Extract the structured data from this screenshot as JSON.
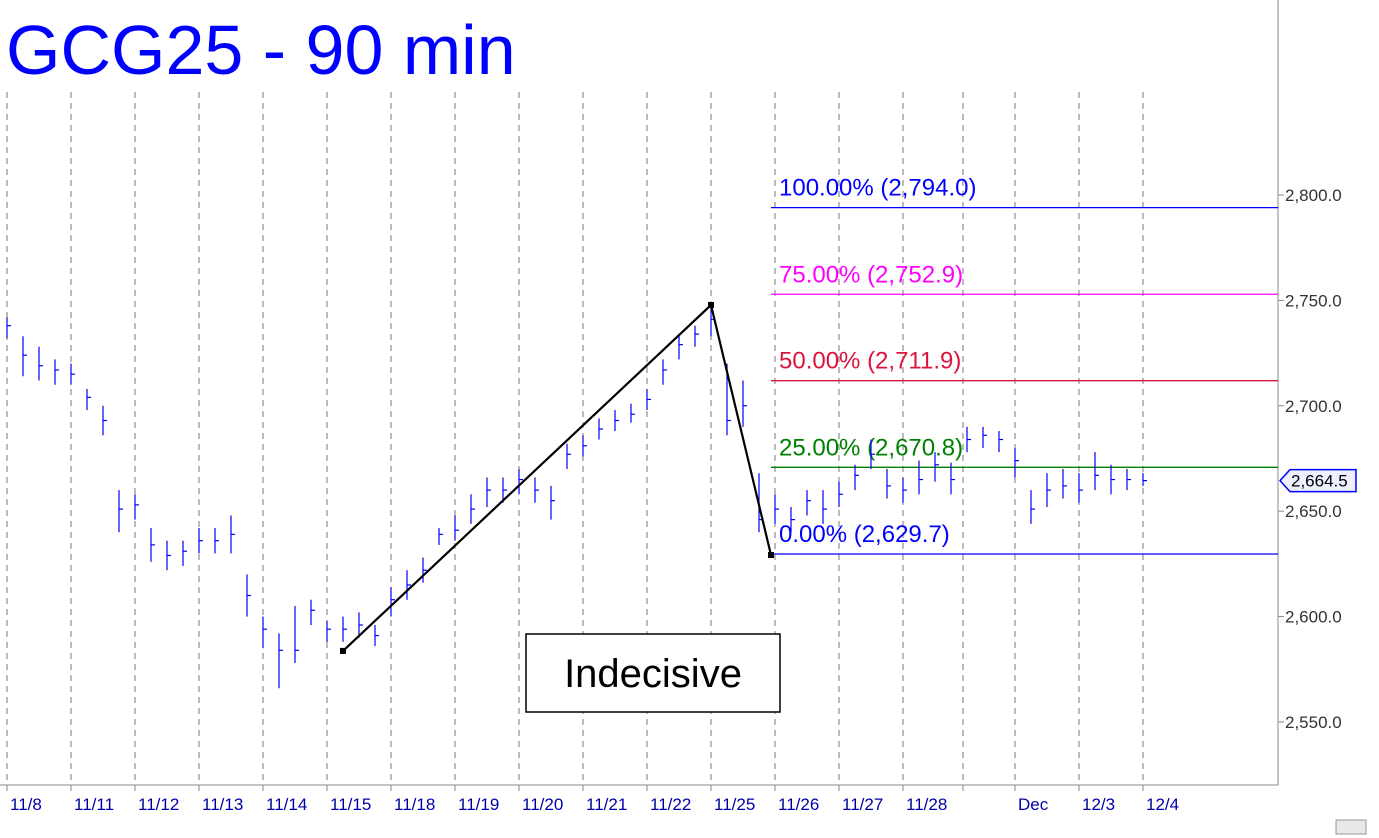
{
  "chart_data": {
    "type": "ohlc",
    "title": "GCG25 - 90 min",
    "color": "#0000ff",
    "x": [
      0,
      4,
      8,
      12,
      16,
      20,
      24,
      28,
      32,
      36,
      40,
      44,
      48,
      52,
      56,
      60,
      64,
      68,
      72,
      76,
      80,
      84,
      88,
      92,
      96,
      100,
      104,
      108,
      112,
      116,
      120,
      124,
      128,
      132,
      136,
      140,
      144,
      148,
      152,
      156,
      160,
      164,
      168,
      172,
      176,
      180,
      184,
      188,
      192,
      196,
      200,
      204,
      208,
      212,
      216,
      220,
      224,
      228,
      232,
      236,
      240,
      244,
      248,
      252,
      256,
      260,
      264,
      268,
      272,
      276,
      280,
      284
    ],
    "high": [
      2742,
      2733,
      2728,
      2722,
      2720,
      2708,
      2700,
      2660,
      2658,
      2642,
      2636,
      2636,
      2642,
      2642,
      2648,
      2620,
      2600,
      2592,
      2605,
      2608,
      2598,
      2600,
      2602,
      2596,
      2614,
      2622,
      2628,
      2642,
      2648,
      2658,
      2666,
      2666,
      2670,
      2666,
      2662,
      2682,
      2686,
      2694,
      2698,
      2701,
      2708,
      2722,
      2734,
      2738,
      2748,
      2720,
      2712,
      2668,
      2658,
      2652,
      2660,
      2660,
      2664,
      2672,
      2684,
      2670,
      2666,
      2674,
      2678,
      2673,
      2690,
      2690,
      2688,
      2680,
      2660,
      2668,
      2670,
      2668,
      2678,
      2672,
      2670,
      2668
    ],
    "low": [
      2732,
      2714,
      2712,
      2710,
      2710,
      2698,
      2686,
      2640,
      2646,
      2626,
      2622,
      2624,
      2630,
      2630,
      2630,
      2600,
      2585,
      2566,
      2578,
      2596,
      2588,
      2588,
      2590,
      2586,
      2600,
      2608,
      2616,
      2634,
      2636,
      2644,
      2652,
      2654,
      2658,
      2654,
      2646,
      2670,
      2676,
      2684,
      2688,
      2692,
      2698,
      2710,
      2722,
      2728,
      2733,
      2686,
      2690,
      2640,
      2644,
      2640,
      2648,
      2644,
      2652,
      2660,
      2670,
      2656,
      2654,
      2658,
      2664,
      2658,
      2678,
      2680,
      2678,
      2666,
      2644,
      2652,
      2656,
      2654,
      2660,
      2658,
      2660,
      2662
    ],
    "close": [
      2738,
      2724,
      2719,
      2717,
      2715,
      2704,
      2693,
      2651,
      2653,
      2634,
      2629,
      2631,
      2636,
      2636,
      2639,
      2610,
      2594,
      2584,
      2584,
      2603,
      2594,
      2594,
      2596,
      2591,
      2608,
      2615,
      2622,
      2639,
      2641,
      2651,
      2660,
      2660,
      2665,
      2660,
      2655,
      2677,
      2681,
      2689,
      2693,
      2696,
      2703,
      2717,
      2729,
      2734,
      2741,
      2693,
      2700,
      2646,
      2651,
      2646,
      2655,
      2651,
      2658,
      2667,
      2677,
      2662,
      2660,
      2665,
      2672,
      2665,
      2684,
      2686,
      2684,
      2674,
      2651,
      2660,
      2662,
      2660,
      2667,
      2665,
      2665,
      2664.5
    ],
    "xlim": [
      -1.75,
      317.75
    ],
    "ylim": [
      2520.1,
      2892.5
    ],
    "xticks": [
      {
        "value": 0,
        "label": "11/8"
      },
      {
        "value": 16,
        "label": "11/11"
      },
      {
        "value": 32,
        "label": "11/12"
      },
      {
        "value": 48,
        "label": "11/13"
      },
      {
        "value": 64,
        "label": "11/14"
      },
      {
        "value": 80,
        "label": "11/15"
      },
      {
        "value": 96,
        "label": "11/18"
      },
      {
        "value": 112,
        "label": "11/19"
      },
      {
        "value": 128,
        "label": "11/20"
      },
      {
        "value": 144,
        "label": "11/21"
      },
      {
        "value": 160,
        "label": "11/22"
      },
      {
        "value": 176,
        "label": "11/25"
      },
      {
        "value": 192,
        "label": "11/26"
      },
      {
        "value": 208,
        "label": "11/27"
      },
      {
        "value": 224,
        "label": "11/28"
      },
      {
        "value": 239,
        "label": null
      },
      {
        "value": 252,
        "label": "Dec"
      },
      {
        "value": 268,
        "label": "12/3"
      },
      {
        "value": 284,
        "label": "12/4"
      }
    ],
    "yticks": [
      {
        "value": 2550,
        "label": "2,550.0"
      },
      {
        "value": 2600,
        "label": "2,600.0"
      },
      {
        "value": 2650,
        "label": "2,650.0"
      },
      {
        "value": 2700,
        "label": "2,700.0"
      },
      {
        "value": 2750,
        "label": "2,750.0"
      },
      {
        "value": 2800,
        "label": "2,800.0"
      }
    ],
    "grid": true,
    "pattern": {
      "x": [
        84,
        176,
        191
      ],
      "y": [
        2583.7,
        2747.8,
        2629.2
      ],
      "color": "#000000"
    },
    "levels": [
      {
        "value": 2794.0,
        "label": "100.00% (2,794.0)",
        "color": "#0000ff"
      },
      {
        "value": 2752.9,
        "label": "75.00% (2,752.9)",
        "color": "#ff00ff"
      },
      {
        "value": 2711.9,
        "label": "50.00% (2,711.9)",
        "color": "#dc143c"
      },
      {
        "value": 2670.8,
        "label": "25.00% (2,670.8)",
        "color": "#008000"
      },
      {
        "value": 2629.7,
        "label": "0.00% (2,629.7)",
        "color": "#0000ff"
      }
    ],
    "last_price": {
      "value": 2664.5,
      "label": "2,664.5"
    },
    "annotation": "Indecisive"
  }
}
